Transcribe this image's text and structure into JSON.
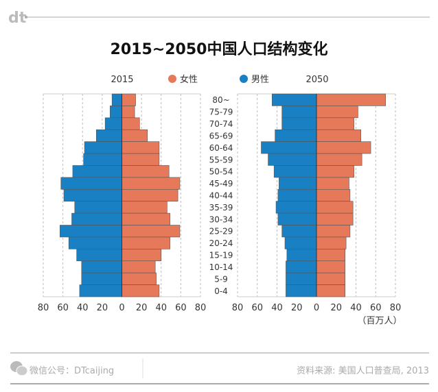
{
  "brand": {
    "logo_text": "dt"
  },
  "chart_data": [
    {
      "type": "bar",
      "orientation": "horizontal-pyramid",
      "title": "2015~2050中国人口结构变化",
      "panel_label": "2015",
      "categories": [
        "80~",
        "75-79",
        "70-74",
        "65-69",
        "60-64",
        "55-59",
        "50-54",
        "45-49",
        "40-44",
        "35-39",
        "30-34",
        "25-29",
        "20-24",
        "15-19",
        "10-14",
        "5-9",
        "0-4"
      ],
      "series": [
        {
          "name": "男性",
          "color": "#1a80c4",
          "side": "left",
          "values": [
            10,
            12,
            17,
            26,
            38,
            39,
            50,
            62,
            59,
            48,
            51,
            63,
            54,
            46,
            41,
            41,
            43
          ]
        },
        {
          "name": "女性",
          "color": "#e5795a",
          "side": "right",
          "values": [
            14,
            13,
            18,
            26,
            38,
            38,
            48,
            59,
            57,
            46,
            49,
            59,
            49,
            40,
            34,
            35,
            38
          ]
        }
      ],
      "xlim": [
        -80,
        80
      ],
      "xticks": [
        "80",
        "60",
        "40",
        "20",
        "0",
        "20",
        "40",
        "60",
        "80"
      ],
      "grid": "vertical dashed",
      "unit": "（百万人）"
    },
    {
      "type": "bar",
      "orientation": "horizontal-pyramid",
      "panel_label": "2050",
      "categories": [
        "80~",
        "75-79",
        "70-74",
        "65-69",
        "60-64",
        "55-59",
        "50-54",
        "45-49",
        "40-44",
        "35-39",
        "30-34",
        "25-29",
        "20-24",
        "15-19",
        "10-14",
        "5-9",
        "0-4"
      ],
      "series": [
        {
          "name": "男性",
          "color": "#1a80c4",
          "side": "left",
          "values": [
            45,
            35,
            35,
            42,
            56,
            49,
            43,
            38,
            39,
            41,
            39,
            35,
            32,
            30,
            31,
            31,
            31
          ]
        },
        {
          "name": "女性",
          "color": "#e5795a",
          "side": "right",
          "values": [
            70,
            42,
            38,
            45,
            55,
            46,
            38,
            33,
            34,
            37,
            37,
            34,
            30,
            29,
            29,
            29,
            29
          ]
        }
      ],
      "xlim": [
        -80,
        80
      ],
      "xticks": [
        "80",
        "60",
        "40",
        "20",
        "0",
        "20",
        "40",
        "60",
        "80"
      ],
      "grid": "vertical dashed"
    }
  ],
  "legend": {
    "female": "女性",
    "male": "男性",
    "female_color": "#e5795a",
    "male_color": "#1a80c4"
  },
  "footer": {
    "wechat": "微信公号：DTcaijing",
    "source": "资料来源: 美国人口普查局, 2013"
  }
}
